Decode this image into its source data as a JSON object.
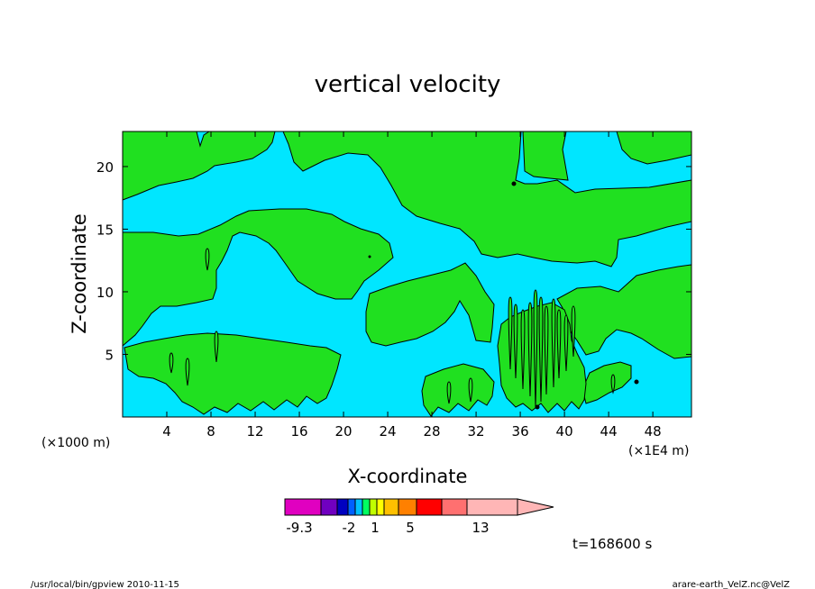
{
  "chart_data": {
    "type": "heatmap",
    "title": "vertical velocity",
    "xlabel": "X-coordinate",
    "ylabel": "Z-coordinate",
    "x_unit_left": "(×1000 m)",
    "x_unit_right": "(×1E4 m)",
    "xlim": [
      0,
      51.5
    ],
    "ylim": [
      0,
      22.8
    ],
    "x_ticks": [
      4,
      8,
      12,
      16,
      20,
      24,
      28,
      32,
      36,
      40,
      44,
      48
    ],
    "y_ticks": [
      5,
      10,
      15,
      20
    ],
    "grid": false,
    "colors": {
      "background_field": "#00e6ff",
      "positive_field": "#20e020",
      "contour_line": "#000000"
    },
    "colorbar": {
      "colors": [
        "#e000c0",
        "#7000c0",
        "#0000c0",
        "#0060ff",
        "#00c0ff",
        "#00ff60",
        "#c0ff00",
        "#ffff00",
        "#ffc000",
        "#ff8000",
        "#ff0000",
        "#ff7070",
        "#ffb6b6"
      ],
      "tick_labels": [
        "-9.3",
        "-2",
        "1",
        "5",
        "13"
      ],
      "open_end": "right"
    },
    "time_label": "t=168600 s"
  },
  "footer": {
    "left": "/usr/local/bin/gpview  2010-11-15",
    "right": "arare-earth_VelZ.nc@VelZ"
  }
}
